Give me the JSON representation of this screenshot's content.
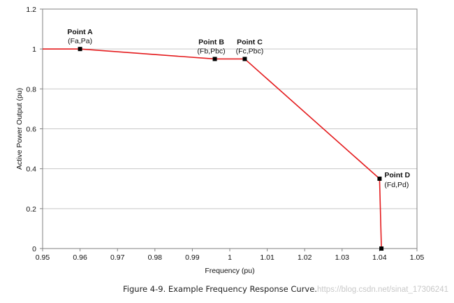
{
  "chart_data": {
    "type": "line",
    "title": "",
    "xlabel": "Frequency (pu)",
    "ylabel": "Active Power Output (pu)",
    "xlim": [
      0.95,
      1.05
    ],
    "ylim": [
      0,
      1.2
    ],
    "xticks": [
      0.95,
      0.96,
      0.97,
      0.98,
      0.99,
      1,
      1.01,
      1.02,
      1.03,
      1.04,
      1.05
    ],
    "xtick_labels": [
      "0.95",
      "0.96",
      "0.97",
      "0.98",
      "0.99",
      "1",
      "1.01",
      "1.02",
      "1.03",
      "1.04",
      "1.05"
    ],
    "yticks": [
      0,
      0.2,
      0.4,
      0.6,
      0.8,
      1,
      1.2
    ],
    "ytick_labels": [
      "0",
      "0.2",
      "0.4",
      "0.6",
      "0.8",
      "1",
      "1.2"
    ],
    "grid": true,
    "series": [
      {
        "color": "#e41a1c",
        "x": [
          0.95,
          0.96,
          0.996,
          1.004,
          1.04,
          1.0405
        ],
        "y": [
          1.0,
          1.0,
          0.95,
          0.95,
          0.35,
          0.0
        ]
      }
    ],
    "markers": [
      {
        "x": 0.96,
        "y": 1.0
      },
      {
        "x": 0.996,
        "y": 0.95
      },
      {
        "x": 1.004,
        "y": 0.95
      },
      {
        "x": 1.04,
        "y": 0.35
      },
      {
        "x": 1.0405,
        "y": 0.0
      }
    ],
    "annotations": [
      {
        "title": "Point A",
        "sub": "(Fa,Pa)",
        "x": 0.96,
        "y": 1.0
      },
      {
        "title": "Point B",
        "sub": "(Fb,Pbc)",
        "x": 0.996,
        "y": 0.95
      },
      {
        "title": "Point C",
        "sub": "(Fc,Pbc)",
        "x": 1.004,
        "y": 0.95
      },
      {
        "title": "Point D",
        "sub": "(Fd,Pd)",
        "x": 1.04,
        "y": 0.35
      }
    ]
  },
  "caption": "Figure 4-9.  Example Frequency Response Curve.",
  "watermark": "https://blog.csdn.net/sinat_17306241",
  "colors": {
    "line": "#e41a1c",
    "grid": "#c8c8c8",
    "marker": "#000000"
  }
}
